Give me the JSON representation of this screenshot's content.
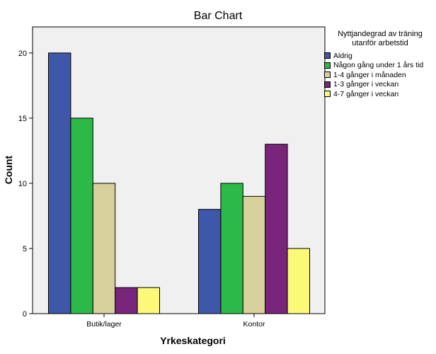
{
  "chart_data": {
    "type": "bar",
    "title": "Bar Chart",
    "xlabel": "Yrkeskategori",
    "ylabel": "Count",
    "categories": [
      "Butik/lager",
      "Kontor"
    ],
    "ylim": [
      0,
      22
    ],
    "yticks": [
      0,
      5,
      10,
      15,
      20
    ],
    "grid": false,
    "legend_title": "Nyttjandegrad av träning utanför arbetstid",
    "legend_title_lines": [
      "Nyttjandegrad av träning",
      "utanför arbetstid"
    ],
    "legend_position": "right",
    "series": [
      {
        "name": "Aldrig",
        "color": "#3F57A9",
        "values": [
          20,
          8
        ]
      },
      {
        "name": "Någon gång under 1 års tid",
        "color": "#2CB947",
        "values": [
          15,
          10
        ]
      },
      {
        "name": "1-4 gånger i månaden",
        "color": "#D6D09D",
        "values": [
          10,
          9
        ]
      },
      {
        "name": "1-3 gånger i veckan",
        "color": "#7A257C",
        "values": [
          2,
          13
        ]
      },
      {
        "name": "4-7 gånger i veckan",
        "color": "#FBF977",
        "values": [
          2,
          5
        ]
      }
    ],
    "plot_background": "#F0F0F0"
  }
}
